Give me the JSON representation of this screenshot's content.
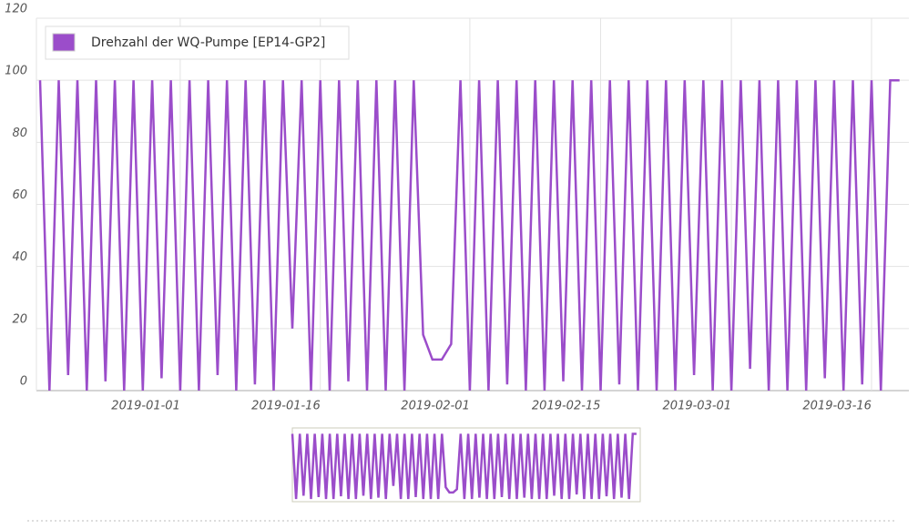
{
  "chart_data": {
    "type": "line",
    "x": [
      "2018-12-17",
      "2018-12-18",
      "2018-12-19",
      "2018-12-20",
      "2018-12-21",
      "2018-12-22",
      "2018-12-23",
      "2018-12-24",
      "2018-12-25",
      "2018-12-26",
      "2018-12-27",
      "2018-12-28",
      "2018-12-29",
      "2018-12-30",
      "2018-12-31",
      "2019-01-01",
      "2019-01-02",
      "2019-01-03",
      "2019-01-04",
      "2019-01-05",
      "2019-01-06",
      "2019-01-07",
      "2019-01-08",
      "2019-01-09",
      "2019-01-10",
      "2019-01-11",
      "2019-01-12",
      "2019-01-13",
      "2019-01-14",
      "2019-01-15",
      "2019-01-16",
      "2019-01-17",
      "2019-01-18",
      "2019-01-19",
      "2019-01-20",
      "2019-01-21",
      "2019-01-22",
      "2019-01-23",
      "2019-01-24",
      "2019-01-25",
      "2019-01-26",
      "2019-01-27",
      "2019-01-28",
      "2019-01-29",
      "2019-01-30",
      "2019-01-31",
      "2019-02-01",
      "2019-02-02",
      "2019-02-03",
      "2019-02-04",
      "2019-02-05",
      "2019-02-06",
      "2019-02-07",
      "2019-02-08",
      "2019-02-09",
      "2019-02-10",
      "2019-02-11",
      "2019-02-12",
      "2019-02-13",
      "2019-02-14",
      "2019-02-15",
      "2019-02-16",
      "2019-02-17",
      "2019-02-18",
      "2019-02-19",
      "2019-02-20",
      "2019-02-21",
      "2019-02-22",
      "2019-02-23",
      "2019-02-24",
      "2019-02-25",
      "2019-02-26",
      "2019-02-27",
      "2019-02-28",
      "2019-03-01",
      "2019-03-02",
      "2019-03-03",
      "2019-03-04",
      "2019-03-05",
      "2019-03-06",
      "2019-03-07",
      "2019-03-08",
      "2019-03-09",
      "2019-03-10",
      "2019-03-11",
      "2019-03-12",
      "2019-03-13",
      "2019-03-14",
      "2019-03-15",
      "2019-03-16",
      "2019-03-17",
      "2019-03-18",
      "2019-03-19"
    ],
    "series": [
      {
        "name": "Drehzahl der WQ-Pumpe [EP14-GP2]",
        "color": "#9b4dca",
        "values": [
          100,
          0,
          100,
          5,
          100,
          0,
          100,
          3,
          100,
          0,
          100,
          0,
          100,
          4,
          100,
          0,
          100,
          0,
          100,
          5,
          100,
          0,
          100,
          2,
          100,
          0,
          100,
          20,
          100,
          0,
          100,
          0,
          100,
          3,
          100,
          0,
          100,
          0,
          100,
          0,
          100,
          18,
          10,
          10,
          15,
          100,
          0,
          100,
          0,
          100,
          2,
          100,
          0,
          100,
          0,
          100,
          3,
          100,
          0,
          100,
          0,
          100,
          2,
          100,
          0,
          100,
          0,
          100,
          0,
          100,
          5,
          100,
          0,
          100,
          0,
          100,
          7,
          100,
          0,
          100,
          0,
          100,
          0,
          100,
          4,
          100,
          0,
          100,
          2,
          100,
          0,
          100,
          100
        ]
      }
    ],
    "xlim": [
      "2018-12-17",
      "2019-03-20"
    ],
    "xticks": [
      "2019-01-01",
      "2019-01-16",
      "2019-02-01",
      "2019-02-15",
      "2019-03-01",
      "2019-03-16"
    ],
    "ylim": [
      0,
      120
    ],
    "yticks": [
      0,
      20,
      40,
      60,
      80,
      100,
      120
    ],
    "grid": true,
    "legend": "top-left"
  }
}
